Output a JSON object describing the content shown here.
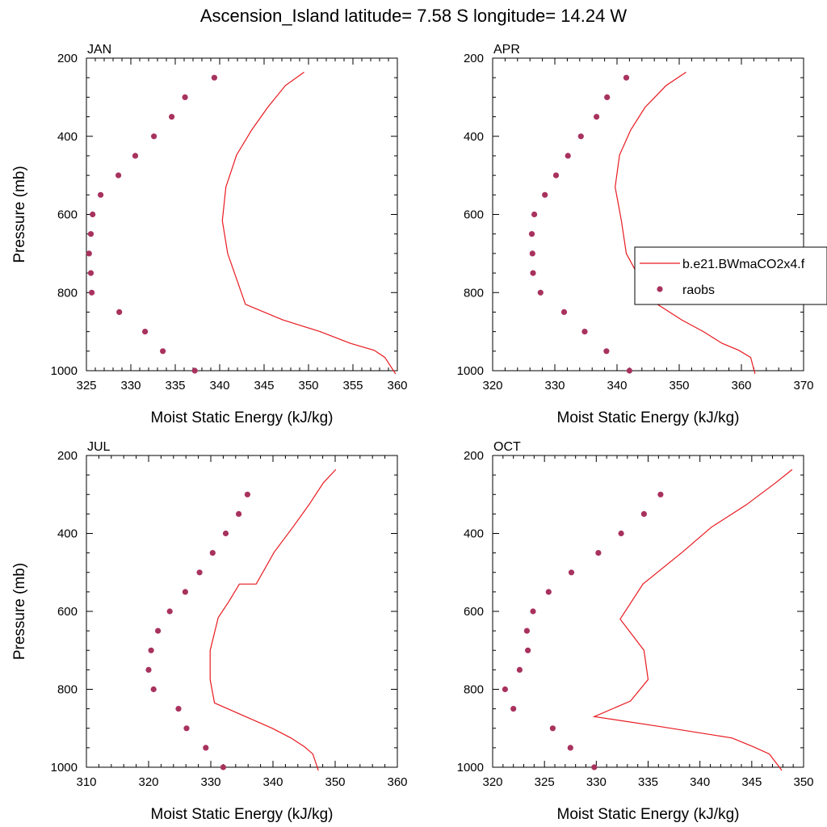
{
  "title": "Ascension_Island  latitude= 7.58 S longitude= 14.24 W",
  "colors": {
    "model": "#e8191f",
    "obs": "#a8325e"
  },
  "legend": {
    "model_label": "b.e21.BWmaCO2x4.f",
    "obs_label": "raobs",
    "placement": "right of APR panel"
  },
  "chart_data": [
    {
      "type": "line",
      "panel": "JAN",
      "xlabel": "Moist Static Energy (kJ/kg)",
      "ylabel": "Pressure (mb)",
      "xlim": [
        325,
        360
      ],
      "ylim": [
        1000,
        200
      ],
      "y_reversed": true,
      "xticks": [
        325,
        330,
        335,
        340,
        345,
        350,
        355,
        360
      ],
      "yticks": [
        200,
        400,
        600,
        800,
        1000
      ],
      "series": [
        {
          "name": "b.e21.BWmaCO2x4.f",
          "style": "line",
          "x": [
            349.5,
            347.4,
            345.4,
            343.6,
            341.9,
            340.7,
            340.3,
            340.9,
            341.9,
            342.9,
            347.1,
            351.3,
            354.7,
            357.4,
            358.6,
            359.8
          ],
          "y": [
            236,
            270,
            326,
            384,
            448,
            530,
            616,
            700,
            765,
            830,
            870,
            900,
            930,
            948,
            966,
            1008
          ]
        },
        {
          "name": "raobs",
          "style": "marker",
          "x": [
            339.4,
            336.1,
            334.6,
            332.6,
            330.5,
            328.6,
            326.6,
            325.7,
            325.5,
            325.3,
            325.5,
            325.6,
            328.7,
            331.6,
            333.6,
            337.2
          ],
          "y": [
            250,
            300,
            350,
            400,
            450,
            500,
            550,
            600,
            650,
            700,
            750,
            800,
            850,
            900,
            950,
            1000
          ]
        }
      ]
    },
    {
      "type": "line",
      "panel": "APR",
      "xlabel": "Moist Static Energy (kJ/kg)",
      "ylabel": "",
      "xlim": [
        320,
        370
      ],
      "ylim": [
        1000,
        200
      ],
      "y_reversed": true,
      "xticks": [
        320,
        330,
        340,
        350,
        360,
        370
      ],
      "yticks": [
        200,
        400,
        600,
        800,
        1000
      ],
      "series": [
        {
          "name": "b.e21.BWmaCO2x4.f",
          "style": "line",
          "x": [
            351.1,
            347.9,
            344.5,
            342.2,
            340.4,
            339.7,
            340.7,
            341.5,
            343.7,
            346.5,
            350.4,
            353.9,
            356.9,
            359.6,
            361.5,
            362.2
          ],
          "y": [
            236,
            270,
            326,
            384,
            448,
            530,
            616,
            700,
            765,
            830,
            870,
            900,
            930,
            948,
            966,
            1008
          ]
        },
        {
          "name": "raobs",
          "style": "marker",
          "x": [
            341.5,
            338.4,
            336.7,
            334.2,
            332.1,
            330.2,
            328.4,
            326.7,
            326.3,
            326.4,
            326.5,
            327.7,
            331.5,
            334.8,
            338.3,
            342.0
          ],
          "y": [
            250,
            300,
            350,
            400,
            450,
            500,
            550,
            600,
            650,
            700,
            750,
            800,
            850,
            900,
            950,
            1000
          ]
        }
      ]
    },
    {
      "type": "line",
      "panel": "JUL",
      "xlabel": "Moist Static Energy (kJ/kg)",
      "ylabel": "Pressure (mb)",
      "xlim": [
        310,
        360
      ],
      "ylim": [
        1000,
        200
      ],
      "y_reversed": true,
      "xticks": [
        310,
        320,
        330,
        340,
        350,
        360
      ],
      "yticks": [
        200,
        400,
        600,
        800,
        1000
      ],
      "series": [
        {
          "name": "b.e21.BWmaCO2x4.f",
          "style": "line",
          "x": [
            350.1,
            348.1,
            345.8,
            343.2,
            340.2,
            337.3,
            334.6,
            332.9,
            331.2,
            329.9,
            329.9,
            330.6,
            335.6,
            339.9,
            342.9,
            345.1,
            346.4,
            347.3
          ],
          "y": [
            236,
            270,
            326,
            384,
            448,
            530,
            530,
            575,
            616,
            700,
            775,
            835,
            870,
            900,
            925,
            948,
            966,
            1008
          ]
        },
        {
          "name": "raobs",
          "style": "marker",
          "x": [
            335.9,
            334.5,
            332.4,
            330.3,
            328.2,
            325.9,
            323.4,
            321.5,
            320.4,
            320.0,
            320.8,
            324.8,
            326.1,
            329.2,
            332.0
          ],
          "y": [
            300,
            350,
            400,
            450,
            500,
            550,
            600,
            650,
            700,
            750,
            800,
            850,
            900,
            950,
            1000
          ]
        }
      ]
    },
    {
      "type": "line",
      "panel": "OCT",
      "xlabel": "Moist Static Energy (kJ/kg)",
      "ylabel": "",
      "xlim": [
        320,
        350
      ],
      "ylim": [
        1000,
        200
      ],
      "y_reversed": true,
      "xticks": [
        320,
        325,
        330,
        335,
        340,
        345,
        350
      ],
      "yticks": [
        200,
        400,
        600,
        800,
        1000
      ],
      "series": [
        {
          "name": "b.e21.BWmaCO2x4.f",
          "style": "line",
          "x": [
            348.9,
            347.3,
            344.5,
            341.1,
            338.3,
            334.5,
            332.3,
            334.6,
            335.0,
            333.3,
            329.8,
            336.0,
            343.1,
            345.2,
            346.7,
            347.9
          ],
          "y": [
            236,
            270,
            326,
            384,
            448,
            530,
            620,
            700,
            775,
            830,
            870,
            895,
            925,
            948,
            966,
            1008
          ]
        },
        {
          "name": "raobs",
          "style": "marker",
          "x": [
            336.2,
            334.6,
            332.4,
            330.2,
            327.6,
            325.4,
            323.9,
            323.3,
            323.4,
            322.6,
            321.2,
            322.0,
            325.8,
            327.5,
            329.8
          ],
          "y": [
            300,
            350,
            400,
            450,
            500,
            550,
            600,
            650,
            700,
            750,
            800,
            850,
            900,
            950,
            1000
          ]
        }
      ]
    }
  ]
}
